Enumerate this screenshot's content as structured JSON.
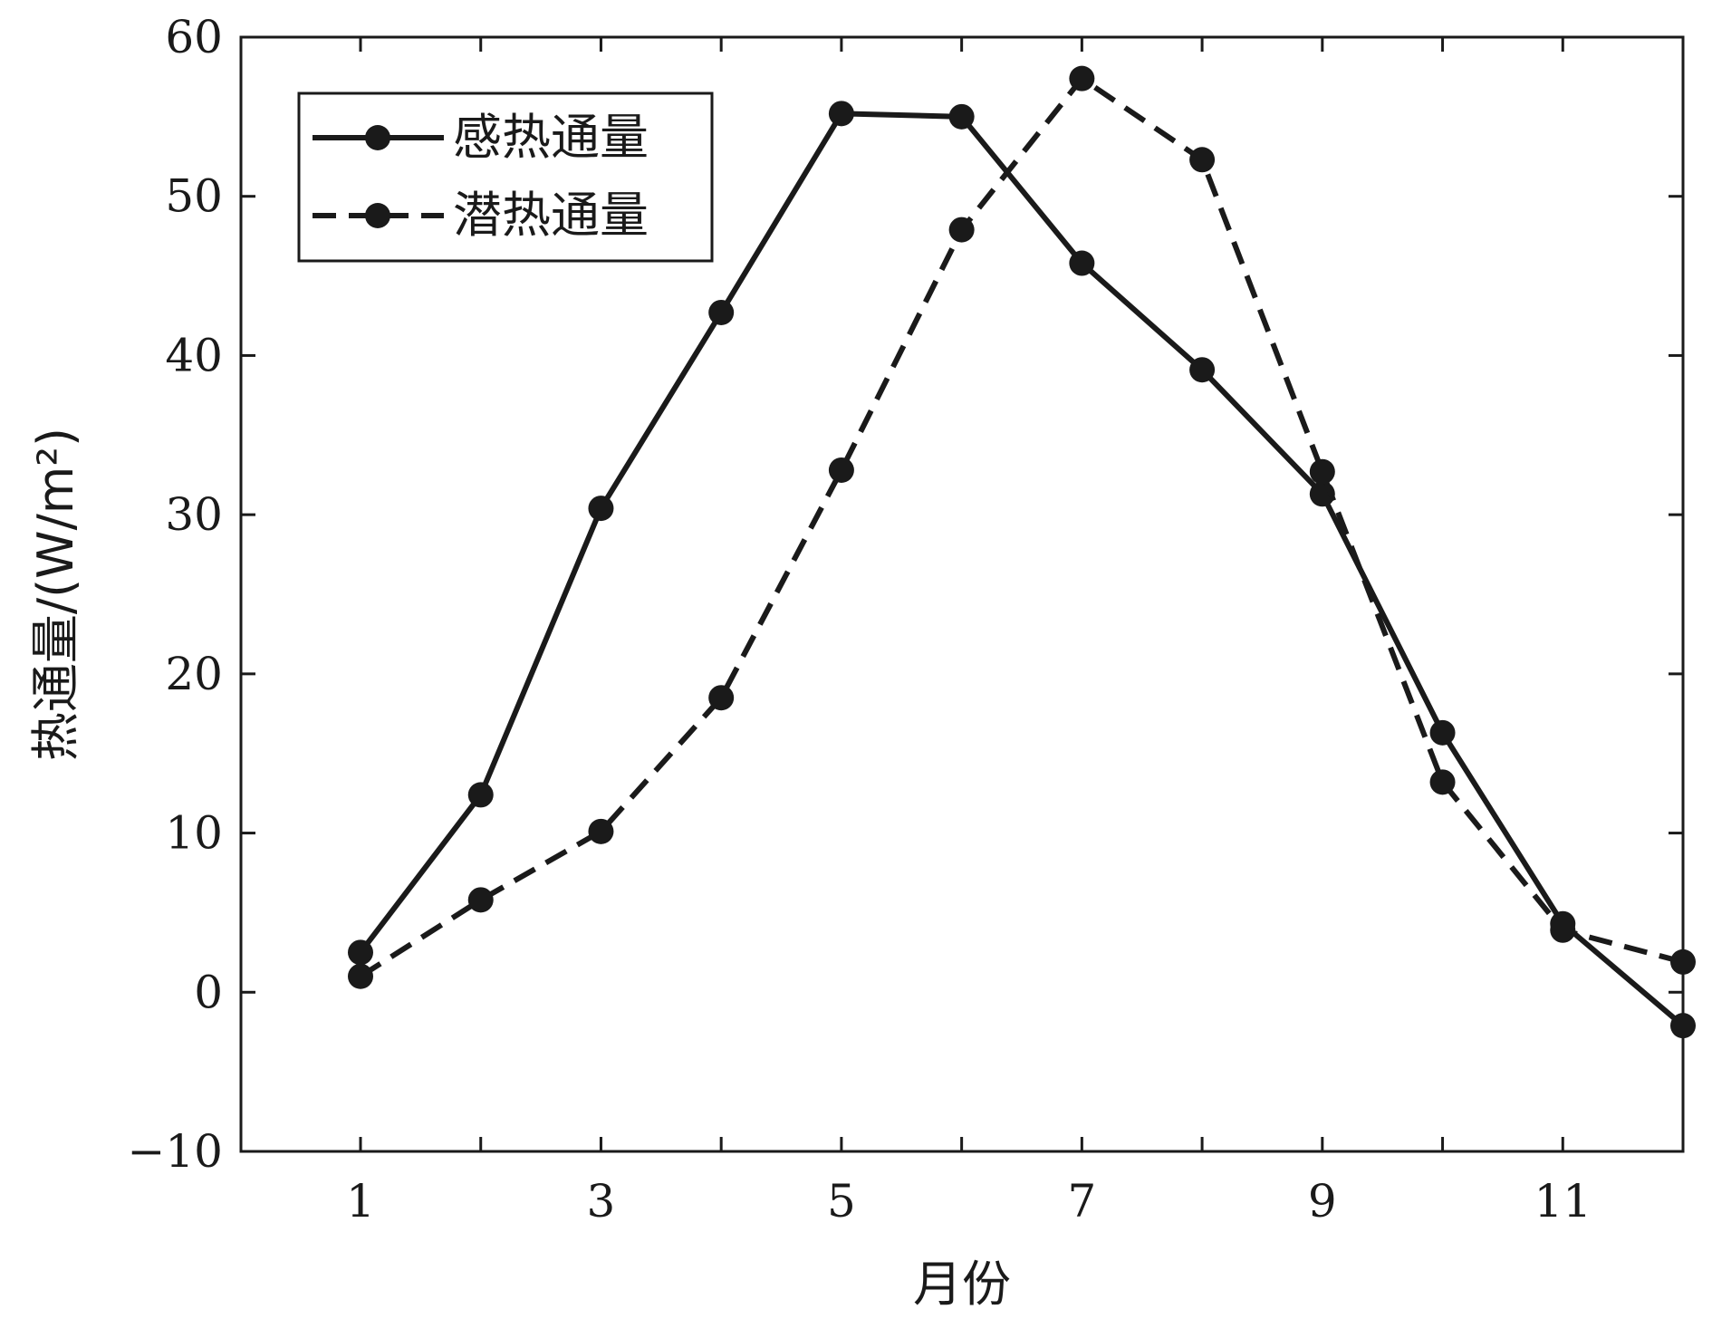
{
  "chart_data": {
    "type": "line",
    "title": "",
    "xlabel": "月份",
    "ylabel": "热通量/(W/m²)",
    "x": [
      1,
      2,
      3,
      4,
      5,
      6,
      7,
      8,
      9,
      10,
      11,
      12
    ],
    "xlim": [
      1,
      12
    ],
    "ylim": [
      -10,
      60
    ],
    "xticks": [
      1,
      3,
      5,
      7,
      9,
      11
    ],
    "yticks": [
      -10,
      0,
      10,
      20,
      30,
      40,
      50,
      60
    ],
    "xtick_labels": [
      "1",
      "3",
      "5",
      "7",
      "9",
      "11"
    ],
    "ytick_labels": [
      "−10",
      "0",
      "10",
      "20",
      "30",
      "40",
      "50",
      "60"
    ],
    "grid": false,
    "legend_position": "top-left",
    "series": [
      {
        "name": "感热通量",
        "style": "solid",
        "marker": "circle",
        "color": "#1a1a1a",
        "values": [
          2.5,
          12.4,
          30.4,
          42.7,
          55.2,
          55.0,
          45.8,
          39.1,
          31.3,
          16.3,
          4.3,
          -2.1
        ]
      },
      {
        "name": "潜热通量",
        "style": "dashed",
        "marker": "circle",
        "color": "#1a1a1a",
        "values": [
          1.0,
          5.8,
          10.1,
          18.5,
          32.8,
          47.9,
          57.4,
          52.3,
          32.7,
          13.2,
          3.9,
          1.9
        ]
      }
    ]
  }
}
